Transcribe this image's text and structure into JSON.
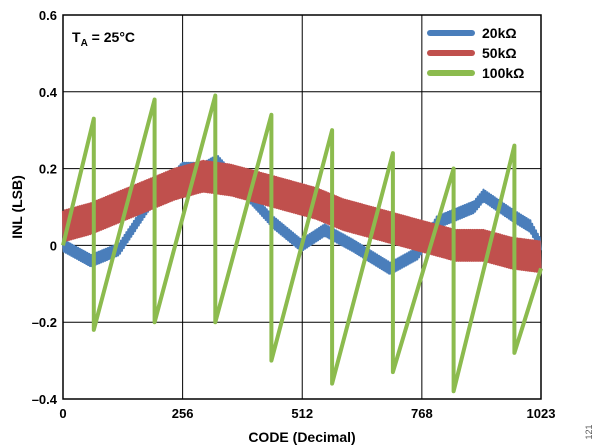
{
  "chart_data": {
    "type": "line",
    "xlabel": "CODE (Decimal)",
    "ylabel": "INL (LSB)",
    "xlim": [
      0,
      1023
    ],
    "ylim": [
      -0.4,
      0.6
    ],
    "xticks": [
      0,
      256,
      512,
      768,
      1023
    ],
    "xtick_labels": [
      "0",
      "256",
      "512",
      "768",
      "1023"
    ],
    "yticks": [
      -0.4,
      -0.2,
      0,
      0.2,
      0.4,
      0.6
    ],
    "ytick_labels": [
      "–0.4",
      "–0.2",
      "0",
      "0.2",
      "0.4",
      "0.6"
    ],
    "grid": true,
    "legend_position": "top-right",
    "annotation": {
      "main": "T",
      "sub": "A",
      "rest": " = 25°C"
    },
    "figure_id": "121",
    "series": [
      {
        "name": "20kΩ",
        "color": "#4a7ebb",
        "style": "band",
        "x": [
          0,
          60,
          120,
          180,
          240,
          255,
          300,
          330,
          390,
          450,
          510,
          560,
          620,
          700,
          760,
          800,
          880,
          900,
          960,
          1000,
          1023
        ],
        "y": [
          0,
          -0.04,
          -0.01,
          0.1,
          0.18,
          0.2,
          0.2,
          0.22,
          0.14,
          0.06,
          0.0,
          0.04,
          0.0,
          -0.06,
          -0.02,
          0.06,
          0.1,
          0.13,
          0.08,
          0.05,
          0.0
        ],
        "amplitude": 0.015
      },
      {
        "name": "50kΩ",
        "color": "#c0504d",
        "style": "band",
        "x": [
          0,
          60,
          120,
          180,
          240,
          300,
          360,
          420,
          480,
          540,
          600,
          660,
          720,
          780,
          840,
          900,
          960,
          1023
        ],
        "y": [
          0.05,
          0.07,
          0.1,
          0.13,
          0.16,
          0.18,
          0.17,
          0.15,
          0.13,
          0.11,
          0.08,
          0.06,
          0.04,
          0.02,
          0.0,
          0.0,
          -0.02,
          -0.03
        ],
        "amplitude": 0.04
      },
      {
        "name": "100kΩ",
        "color": "#8cbb4e",
        "style": "sawtooth",
        "points": [
          [
            0,
            0.0
          ],
          [
            66,
            0.33
          ],
          [
            66,
            -0.22
          ],
          [
            196,
            0.38
          ],
          [
            196,
            -0.2
          ],
          [
            326,
            0.39
          ],
          [
            326,
            -0.2
          ],
          [
            446,
            0.34
          ],
          [
            446,
            -0.3
          ],
          [
            576,
            0.3
          ],
          [
            576,
            -0.36
          ],
          [
            706,
            0.24
          ],
          [
            706,
            -0.33
          ],
          [
            836,
            0.2
          ],
          [
            836,
            -0.38
          ],
          [
            966,
            0.26
          ],
          [
            966,
            -0.28
          ],
          [
            1023,
            -0.06
          ]
        ]
      }
    ]
  }
}
